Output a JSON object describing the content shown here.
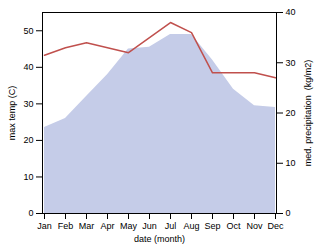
{
  "chart_data": {
    "type": "area",
    "categories": [
      "Jan",
      "Feb",
      "Mar",
      "Apr",
      "May",
      "Jun",
      "Jul",
      "Aug",
      "Sep",
      "Oct",
      "Nov",
      "Dec"
    ],
    "xlabel": "date (month)",
    "ylabel": "max temp (C)",
    "y2label": "med. precipitation  (kg/m2)",
    "ylim": [
      0,
      55
    ],
    "yticks": [
      0,
      10,
      20,
      30,
      40,
      50
    ],
    "y2lim": [
      0,
      40
    ],
    "y2ticks": [
      0,
      10,
      20,
      30,
      40
    ],
    "series": [
      {
        "type": "area",
        "color": "#c5cce8",
        "values": [
          23.5,
          26,
          32,
          38,
          45,
          45.5,
          49,
          49,
          42,
          34,
          29.5,
          29
        ]
      },
      {
        "type": "line",
        "color": "#c0504d",
        "axis": "y2",
        "values": [
          31.5,
          33,
          34,
          33,
          32,
          35,
          38,
          36,
          28,
          28,
          28,
          27
        ]
      }
    ]
  }
}
